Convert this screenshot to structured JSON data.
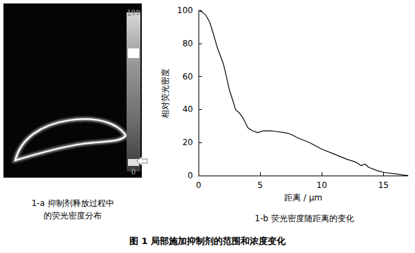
{
  "chart_data": {
    "type": "line",
    "title": "1-b 荧光密度随距离的变化",
    "x_label": "距离 / μm",
    "y_label": "相对荧光密度",
    "x": [
      0,
      0.3,
      0.6,
      0.9,
      1.2,
      1.5,
      1.8,
      2.0,
      2.2,
      2.5,
      2.8,
      3.0,
      3.3,
      3.6,
      4.0,
      4.4,
      4.8,
      5.2,
      6.0,
      7.0,
      7.5,
      8.0,
      9.0,
      10.0,
      11.0,
      12.0,
      12.8,
      13.2,
      13.5,
      13.8,
      14.5,
      15.0,
      16.0,
      17.0
    ],
    "values": [
      100,
      99,
      97,
      93,
      86,
      78,
      72,
      68,
      62,
      52,
      45,
      40,
      38,
      35,
      29,
      27,
      26,
      27,
      27,
      26,
      25,
      23,
      20,
      16,
      13,
      10,
      8,
      6,
      7,
      5,
      3,
      2,
      1,
      0
    ],
    "color": "#000000",
    "xlim": [
      0,
      17
    ],
    "xticks": [
      0,
      5,
      10,
      15
    ],
    "ylim": [
      0,
      100
    ],
    "yticks": [
      0,
      20,
      40,
      60,
      80,
      100
    ],
    "grid": false
  },
  "figure": {
    "title": "图 1   局部施加抑制剂的范围和浓度变化",
    "panel_a": {
      "caption": [
        "1-a  抑制剂释放过程中",
        "的荧光密度分布"
      ],
      "colorbar_ticks": [
        0,
        100
      ]
    }
  }
}
